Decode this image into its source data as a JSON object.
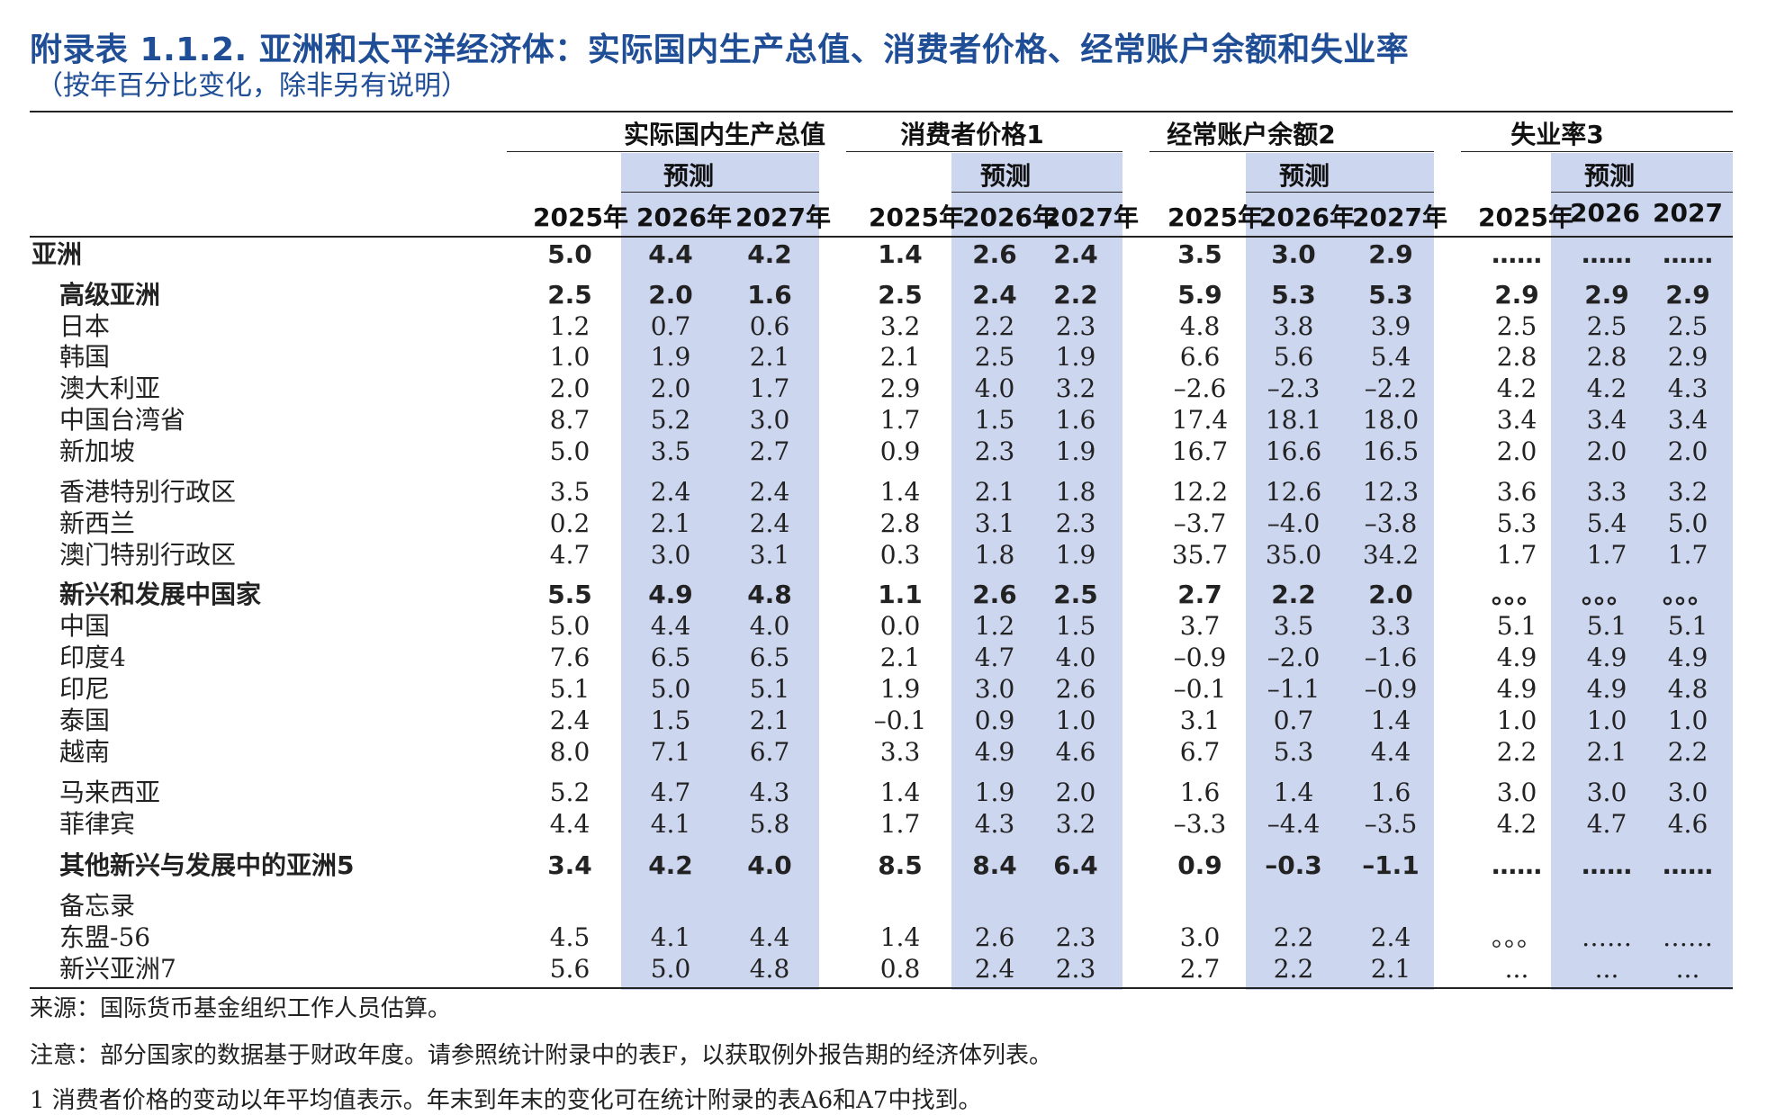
{
  "title": "附录表 1.1.2. 亚洲和太平洋经济体：实际国内生产总值、消费者价格、经常账户余额和失业率",
  "subtitle": "（按年百分比变化，除非另有说明）",
  "groups": [
    {
      "label": "实际国内生产总值",
      "forecast": "预测",
      "years": [
        "2025年",
        "2026年",
        "2027年"
      ]
    },
    {
      "label": "消费者价格1",
      "forecast": "预测",
      "years": [
        "2025年",
        "2026年",
        "2027年"
      ]
    },
    {
      "label": "经常账户余额2",
      "forecast": "预测",
      "years": [
        "2025年",
        "2026年",
        "2027年"
      ]
    },
    {
      "label": "失业率3",
      "forecast": "预测",
      "years": [
        "2025年",
        "2026",
        "2027"
      ]
    }
  ],
  "rows": [
    {
      "label": "亚洲",
      "bold": true,
      "indent": 0,
      "values": [
        "5.0",
        "4.4",
        "4.2",
        "1.4",
        "2.6",
        "2.4",
        "3.5",
        "3.0",
        "2.9",
        "……",
        "……",
        "……"
      ]
    },
    {
      "label": "高级亚洲",
      "bold": true,
      "indent": 1,
      "values": [
        "2.5",
        "2.0",
        "1.6",
        "2.5",
        "2.4",
        "2.2",
        "5.9",
        "5.3",
        "5.3",
        "2.9",
        "2.9",
        "2.9"
      ]
    },
    {
      "label": "日本",
      "bold": false,
      "indent": 1,
      "values": [
        "1.2",
        "0.7",
        "0.6",
        "3.2",
        "2.2",
        "2.3",
        "4.8",
        "3.8",
        "3.9",
        "2.5",
        "2.5",
        "2.5"
      ]
    },
    {
      "label": "韩国",
      "bold": false,
      "indent": 1,
      "values": [
        "1.0",
        "1.9",
        "2.1",
        "2.1",
        "2.5",
        "1.9",
        "6.6",
        "5.6",
        "5.4",
        "2.8",
        "2.8",
        "2.9"
      ]
    },
    {
      "label": "澳大利亚",
      "bold": false,
      "indent": 1,
      "values": [
        "2.0",
        "2.0",
        "1.7",
        "2.9",
        "4.0",
        "3.2",
        "–2.6",
        "–2.3",
        "–2.2",
        "4.2",
        "4.2",
        "4.3"
      ]
    },
    {
      "label": "中国台湾省",
      "bold": false,
      "indent": 1,
      "values": [
        "8.7",
        "5.2",
        "3.0",
        "1.7",
        "1.5",
        "1.6",
        "17.4",
        "18.1",
        "18.0",
        "3.4",
        "3.4",
        "3.4"
      ]
    },
    {
      "label": "新加坡",
      "bold": false,
      "indent": 1,
      "values": [
        "5.0",
        "3.5",
        "2.7",
        "0.9",
        "2.3",
        "1.9",
        "16.7",
        "16.6",
        "16.5",
        "2.0",
        "2.0",
        "2.0"
      ]
    },
    {
      "label": "香港特别行政区",
      "bold": false,
      "indent": 1,
      "values": [
        "3.5",
        "2.4",
        "2.4",
        "1.4",
        "2.1",
        "1.8",
        "12.2",
        "12.6",
        "12.3",
        "3.6",
        "3.3",
        "3.2"
      ]
    },
    {
      "label": "新西兰",
      "bold": false,
      "indent": 1,
      "values": [
        "0.2",
        "2.1",
        "2.4",
        "2.8",
        "3.1",
        "2.3",
        "–3.7",
        "–4.0",
        "–3.8",
        "5.3",
        "5.4",
        "5.0"
      ]
    },
    {
      "label": "澳门特别行政区",
      "bold": false,
      "indent": 1,
      "values": [
        "4.7",
        "3.0",
        "3.1",
        "0.3",
        "1.8",
        "1.9",
        "35.7",
        "35.0",
        "34.2",
        "1.7",
        "1.7",
        "1.7"
      ]
    },
    {
      "label": "新兴和发展中国家",
      "bold": true,
      "indent": 1,
      "values": [
        "5.5",
        "4.9",
        "4.8",
        "1.1",
        "2.6",
        "2.5",
        "2.7",
        "2.2",
        "2.0",
        "。。。",
        "。。。",
        "。。。"
      ]
    },
    {
      "label": "中国",
      "bold": false,
      "indent": 1,
      "values": [
        "5.0",
        "4.4",
        "4.0",
        "0.0",
        "1.2",
        "1.5",
        "3.7",
        "3.5",
        "3.3",
        "5.1",
        "5.1",
        "5.1"
      ]
    },
    {
      "label": "印度4",
      "bold": false,
      "indent": 1,
      "values": [
        "7.6",
        "6.5",
        "6.5",
        "2.1",
        "4.7",
        "4.0",
        "–0.9",
        "–2.0",
        "–1.6",
        "4.9",
        "4.9",
        "4.9"
      ]
    },
    {
      "label": "印尼",
      "bold": false,
      "indent": 1,
      "values": [
        "5.1",
        "5.0",
        "5.1",
        "1.9",
        "3.0",
        "2.6",
        "–0.1",
        "–1.1",
        "–0.9",
        "4.9",
        "4.9",
        "4.8"
      ]
    },
    {
      "label": "泰国",
      "bold": false,
      "indent": 1,
      "values": [
        "2.4",
        "1.5",
        "2.1",
        "–0.1",
        "0.9",
        "1.0",
        "3.1",
        "0.7",
        "1.4",
        "1.0",
        "1.0",
        "1.0"
      ]
    },
    {
      "label": "越南",
      "bold": false,
      "indent": 1,
      "values": [
        "8.0",
        "7.1",
        "6.7",
        "3.3",
        "4.9",
        "4.6",
        "6.7",
        "5.3",
        "4.4",
        "2.2",
        "2.1",
        "2.2"
      ]
    },
    {
      "label": "马来西亚",
      "bold": false,
      "indent": 1,
      "values": [
        "5.2",
        "4.7",
        "4.3",
        "1.4",
        "1.9",
        "2.0",
        "1.6",
        "1.4",
        "1.6",
        "3.0",
        "3.0",
        "3.0"
      ]
    },
    {
      "label": "菲律宾",
      "bold": false,
      "indent": 1,
      "values": [
        "4.4",
        "4.1",
        "5.8",
        "1.7",
        "4.3",
        "3.2",
        "–3.3",
        "–4.4",
        "–3.5",
        "4.2",
        "4.7",
        "4.6"
      ]
    },
    {
      "label": "其他新兴与发展中的亚洲5",
      "bold": true,
      "indent": 1,
      "values": [
        "3.4",
        "4.2",
        "4.0",
        "8.5",
        "8.4",
        "6.4",
        "0.9",
        "–0.3",
        "–1.1",
        "……",
        "……",
        "……"
      ]
    },
    {
      "label": "备忘录",
      "bold": false,
      "indent": 1,
      "values": [
        "",
        "",
        "",
        "",
        "",
        "",
        "",
        "",
        "",
        "",
        "",
        ""
      ]
    },
    {
      "label": "东盟-56",
      "bold": false,
      "indent": 1,
      "values": [
        "4.5",
        "4.1",
        "4.4",
        "1.4",
        "2.6",
        "2.3",
        "3.0",
        "2.2",
        "2.4",
        "。。。",
        "……",
        "……"
      ]
    },
    {
      "label": "新兴亚洲7",
      "bold": false,
      "indent": 1,
      "values": [
        "5.6",
        "5.0",
        "4.8",
        "0.8",
        "2.4",
        "2.3",
        "2.7",
        "2.2",
        "2.1",
        "...",
        "...",
        "..."
      ]
    }
  ],
  "notes": [
    "来源：国际货币基金组织工作人员估算。",
    "注意：部分国家的数据基于财政年度。请参照统计附录中的表F，以获取例外报告期的经济体列表。",
    "1 消费者价格的变动以年平均值表示。年末到年末的变化可在统计附录的表A6和A7中找到。"
  ]
}
